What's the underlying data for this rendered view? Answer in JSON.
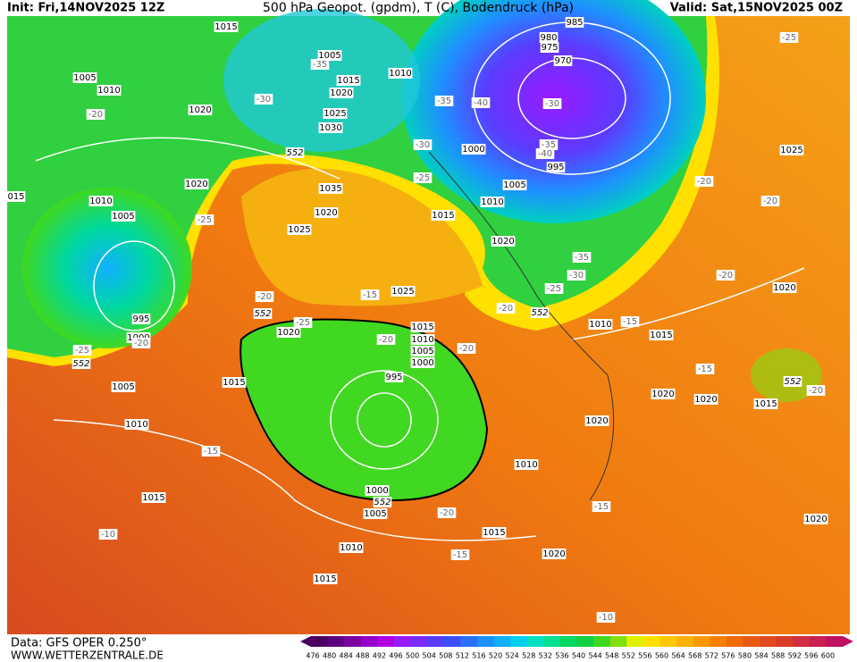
{
  "header": {
    "init": "Init: Fri,14NOV2025 12Z",
    "title": "500 hPa Geopot. (gpdm), T (C), Bodendruck (hPa)",
    "valid": "Valid: Sat,15NOV2025 00Z"
  },
  "footer": {
    "data": "Data: GFS OPER 0.250°",
    "site": "WWW.WETTERZENTRALE.DE"
  },
  "map": {
    "isobars": [
      1015,
      1005,
      1010,
      1015,
      1020,
      1025,
      1030,
      1035,
      1020,
      1025,
      1005,
      1010,
      1020,
      1020,
      "015",
      1010,
      1005,
      995,
      1000,
      1005,
      1010,
      1015,
      1015,
      1020,
      1025,
      1015,
      1010,
      1005,
      1000,
      995,
      1000,
      1005,
      1010,
      1015,
      1015,
      1010,
      1020,
      1000,
      1005,
      1010,
      1015,
      1020,
      995,
      985,
      980,
      975,
      970,
      1010,
      1015,
      1020,
      1020,
      1020,
      1025,
      1020,
      1015,
      1020
    ],
    "temperatures": [
      -25,
      -20,
      -30,
      -35,
      -35,
      -40,
      -30,
      -30,
      -25,
      -35,
      -40,
      -20,
      -20,
      -25,
      -20,
      -15,
      -25,
      -20,
      -20,
      -25,
      -30,
      -35,
      -20,
      -15,
      -15,
      -20,
      -20,
      -25,
      -20,
      -15,
      -10,
      -20,
      -15,
      -15,
      -10
    ],
    "heights": [
      552,
      552,
      552,
      552,
      552,
      552
    ]
  },
  "colorbar": {
    "levels": [
      476,
      480,
      484,
      488,
      492,
      496,
      500,
      504,
      508,
      512,
      516,
      520,
      524,
      528,
      532,
      536,
      540,
      544,
      548,
      552,
      556,
      560,
      564,
      568,
      572,
      576,
      580,
      584,
      588,
      592,
      596,
      600
    ],
    "colors": [
      "#4b0060",
      "#5c0080",
      "#7a00a0",
      "#9600c8",
      "#b000e0",
      "#9a1aff",
      "#7a2cff",
      "#5a3cff",
      "#3c50ff",
      "#2a70ff",
      "#1e90ff",
      "#10b0ff",
      "#00d0f0",
      "#00e0c0",
      "#00e090",
      "#00d860",
      "#10d040",
      "#40d820",
      "#80e010",
      "#e0f000",
      "#ffe000",
      "#ffc800",
      "#ffb000",
      "#ff9800",
      "#f88000",
      "#f06a00",
      "#e85a10",
      "#e04a20",
      "#d83c28",
      "#d03040",
      "#c82050",
      "#c01060"
    ]
  }
}
